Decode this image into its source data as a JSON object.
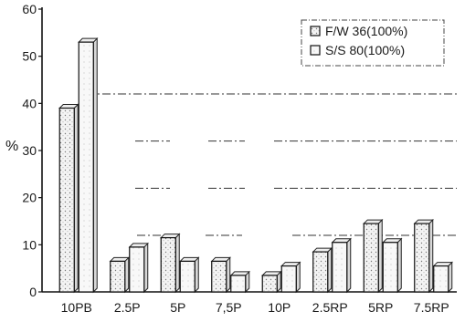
{
  "chart_data": {
    "type": "bar",
    "ylabel": "%",
    "ylim": [
      0,
      60
    ],
    "yticks": [
      0,
      10,
      20,
      30,
      40,
      50,
      60
    ],
    "categories": [
      "10PB",
      "2.5P",
      "5P",
      "7.5P",
      "10P",
      "2.5RP",
      "5RP",
      "7.5RP"
    ],
    "category_labels": [
      "10PB",
      "2.5P",
      "5P",
      "7,5P",
      "10P",
      "2.5RP",
      "5RP",
      "7.5RP"
    ],
    "series": [
      {
        "name": "F/W 36(100%)",
        "values": [
          39,
          6.5,
          11.5,
          6.5,
          3.5,
          8.5,
          14.5,
          14.5
        ]
      },
      {
        "name": "S/S 80(100%)",
        "values": [
          53,
          9.5,
          6.5,
          3.5,
          5.5,
          10.5,
          10.5,
          5.5
        ]
      }
    ],
    "legend": {
      "position": "top-right",
      "entries": [
        "F/W 36(100%)",
        "S/S 80(100%)"
      ]
    },
    "grid": "dash-dot horizontal lines at 12, 22, 32 and 42",
    "style": "3D shaded bars"
  }
}
